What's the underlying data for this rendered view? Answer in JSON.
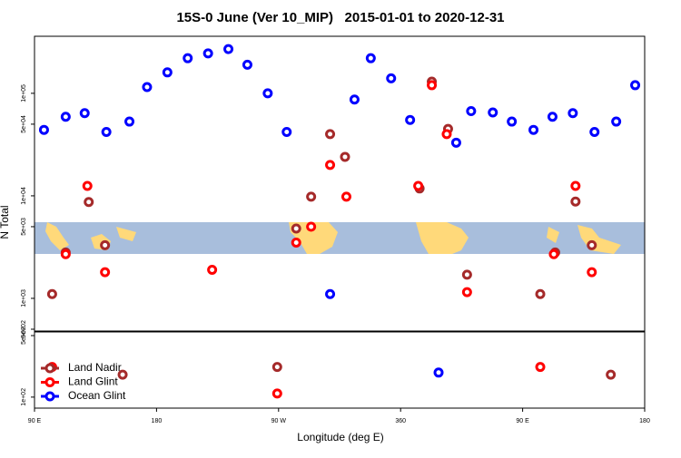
{
  "chart_data": [
    {
      "type": "scatter",
      "title": "15S-0 June (Ver 10_MIP)   2015-01-01 to 2020-12-31",
      "ylabel": "N Total",
      "log_y": true,
      "xlim": [
        90,
        540
      ],
      "ylim": [
        480,
        360000
      ],
      "yticks": [
        {
          "value": 1000,
          "label": "1e+03"
        },
        {
          "value": 5000,
          "label": "5e+03"
        },
        {
          "value": 10000,
          "label": "1e+04"
        },
        {
          "value": 50000,
          "label": "5e+04"
        },
        {
          "value": 100000,
          "label": "1e+05"
        },
        {
          "value": 500,
          "label": "5e+02"
        }
      ],
      "series": [
        {
          "color": "#a52a2a",
          "x": [
            103,
            113,
            130,
            142,
            283,
            294,
            308,
            319,
            374,
            383,
            395,
            409,
            463,
            474,
            489,
            501
          ],
          "values": [
            1100,
            2800,
            8700,
            3300,
            4800,
            9800,
            40000,
            24000,
            11800,
            130000,
            45000,
            1700,
            1100,
            2800,
            8800,
            3300
          ]
        },
        {
          "color": "#ff0000",
          "x": [
            129,
            113,
            142,
            221,
            283,
            294,
            308,
            320,
            373,
            383,
            394,
            409,
            473,
            489,
            501
          ],
          "values": [
            12500,
            2700,
            1800,
            1900,
            3500,
            5000,
            20000,
            9800,
            12500,
            120000,
            40000,
            1150,
            2700,
            12500,
            1800
          ]
        },
        {
          "color": "#0000ff",
          "x": [
            97,
            113,
            127,
            143,
            160,
            173,
            188,
            203,
            218,
            233,
            247,
            262,
            276,
            308,
            326,
            338,
            353,
            367,
            401,
            412,
            428,
            442,
            458,
            472,
            487,
            503,
            519,
            533
          ],
          "values": [
            44000,
            59000,
            64000,
            42000,
            53000,
            115000,
            160000,
            220000,
            245000,
            270000,
            190000,
            100000,
            42000,
            1100,
            87000,
            220000,
            140000,
            55000,
            33000,
            67000,
            65000,
            53000,
            44000,
            59000,
            64000,
            42000,
            53000,
            120000
          ]
        }
      ]
    },
    {
      "type": "scatter",
      "xlabel": "Longitude (deg E)",
      "log_y": true,
      "legend": "upper left",
      "xlim": [
        90,
        540
      ],
      "ylim": [
        75,
        550
      ],
      "xticks": [
        {
          "value": 90,
          "label": "90 E"
        },
        180,
        {
          "value": 270,
          "label": "90 W"
        },
        360,
        {
          "value": 450,
          "label": "90 E"
        },
        {
          "value": 540,
          "label": "180"
        }
      ],
      "yticks": [
        {
          "value": 100,
          "label": "1e+02"
        },
        {
          "value": 500,
          "label": "5e+02"
        }
      ],
      "series": [
        {
          "name": "Land Nadir",
          "color": "#a52a2a",
          "x": [
            155,
            269,
            515
          ],
          "values": [
            180,
            220,
            180
          ]
        },
        {
          "name": "Land Glint",
          "color": "#ff0000",
          "x": [
            103,
            269,
            463
          ],
          "values": [
            220,
            110,
            220
          ]
        },
        {
          "name": "Ocean Glint",
          "color": "#0000ff",
          "x": [
            388
          ],
          "values": [
            190
          ]
        }
      ]
    }
  ]
}
